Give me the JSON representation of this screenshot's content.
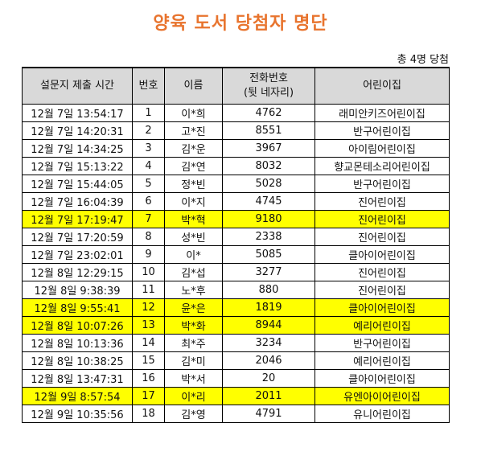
{
  "title": "양육 도서 당첨자 명단",
  "summary": "총 4명 당첨",
  "columns": {
    "time": "설문지 제출 시간",
    "num": "번호",
    "name": "이름",
    "phone_line1": "전화번호",
    "phone_line2": "(뒷 네자리)",
    "daycare": "어린이집"
  },
  "highlight_color": "#ffff00",
  "rows": [
    {
      "time": "12월 7일 13:54:17",
      "num": "1",
      "name": "이*희",
      "phone": "4762",
      "daycare": "래미안키즈어린이집",
      "winner": false
    },
    {
      "time": "12월 7일 14:20:31",
      "num": "2",
      "name": "고*진",
      "phone": "8551",
      "daycare": "반구어린이집",
      "winner": false
    },
    {
      "time": "12월 7일 14:34:25",
      "num": "3",
      "name": "김*운",
      "phone": "3967",
      "daycare": "아이림어린이집",
      "winner": false
    },
    {
      "time": "12월 7일 15:13:22",
      "num": "4",
      "name": "김*연",
      "phone": "8032",
      "daycare": "향교몬테소리어린이집",
      "winner": false
    },
    {
      "time": "12월 7일 15:44:05",
      "num": "5",
      "name": "정*빈",
      "phone": "5028",
      "daycare": "반구어린이집",
      "winner": false
    },
    {
      "time": "12월 7일 16:04:39",
      "num": "6",
      "name": "이*지",
      "phone": "4745",
      "daycare": "진어린이집",
      "winner": false
    },
    {
      "time": "12월 7일 17:19:47",
      "num": "7",
      "name": "박*혁",
      "phone": "9180",
      "daycare": "진어린이집",
      "winner": true
    },
    {
      "time": "12월 7일 17:20:59",
      "num": "8",
      "name": "성*빈",
      "phone": "2338",
      "daycare": "진어린이집",
      "winner": false
    },
    {
      "time": "12월 7일 23:02:01",
      "num": "9",
      "name": "이*",
      "phone": "5085",
      "daycare": "클아이어린이집",
      "winner": false
    },
    {
      "time": "12월 8일 12:29:15",
      "num": "10",
      "name": "김*섭",
      "phone": "3277",
      "daycare": "진어린이집",
      "winner": false
    },
    {
      "time": "12월 8일 9:38:39",
      "num": "11",
      "name": "노*후",
      "phone": "880",
      "daycare": "진어린이집",
      "winner": false
    },
    {
      "time": "12월 8일 9:55:41",
      "num": "12",
      "name": "윤*은",
      "phone": "1819",
      "daycare": "클아이어린이집",
      "winner": true
    },
    {
      "time": "12월 8일 10:07:26",
      "num": "13",
      "name": "박*화",
      "phone": "8944",
      "daycare": "예리어린이집",
      "winner": true
    },
    {
      "time": "12월 8일 10:13:36",
      "num": "14",
      "name": "최*주",
      "phone": "3234",
      "daycare": "반구어린이집",
      "winner": false
    },
    {
      "time": "12월 8일 10:38:25",
      "num": "15",
      "name": "김*미",
      "phone": "2046",
      "daycare": "예리어린이집",
      "winner": false
    },
    {
      "time": "12월 8일 13:47:31",
      "num": "16",
      "name": "박*서",
      "phone": "20",
      "daycare": "클아이어린이집",
      "winner": false
    },
    {
      "time": "12월 9일 8:57:54",
      "num": "17",
      "name": "이*리",
      "phone": "2011",
      "daycare": "유엔아이어린이집",
      "winner": true
    },
    {
      "time": "12월 9일 10:35:56",
      "num": "18",
      "name": "김*영",
      "phone": "4791",
      "daycare": "유니어린이집",
      "winner": false
    }
  ]
}
